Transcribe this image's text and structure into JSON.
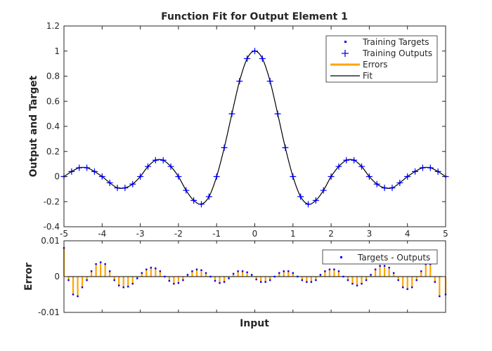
{
  "chart_data": [
    {
      "type": "line",
      "title": "Function Fit for Output Element 1",
      "xlabel": "",
      "ylabel": "Output and Target",
      "xlim": [
        -5,
        5
      ],
      "ylim": [
        -0.4,
        1.2
      ],
      "x_ticks": [
        -5,
        -4,
        -3,
        -2,
        -1,
        0,
        1,
        2,
        3,
        4,
        5
      ],
      "x_tick_labels": [
        "-5",
        "-4",
        "-3",
        "-2",
        "-1",
        "0",
        "1",
        "2",
        "3",
        "4",
        "5"
      ],
      "y_ticks": [
        -0.4,
        -0.2,
        0,
        0.2,
        0.4,
        0.6,
        0.8,
        1,
        1.2
      ],
      "y_tick_labels": [
        "-0.4",
        "-0.2",
        "0",
        "0.2",
        "0.4",
        "0.6",
        "0.8",
        "1",
        "1.2"
      ],
      "grid": false,
      "legend_position": "top-right",
      "legend": [
        "Training Targets",
        "Training Outputs",
        "Errors",
        "Fit"
      ],
      "x": [
        -5,
        -4.8,
        -4.6,
        -4.4,
        -4.2,
        -4,
        -3.8,
        -3.6,
        -3.4,
        -3.2,
        -3,
        -2.8,
        -2.6,
        -2.4,
        -2.2,
        -2,
        -1.8,
        -1.6,
        -1.4,
        -1.2,
        -1,
        -0.8,
        -0.6,
        -0.4,
        -0.2,
        0,
        0.2,
        0.4,
        0.6,
        0.8,
        1,
        1.2,
        1.4,
        1.6,
        1.8,
        2,
        2.2,
        2.4,
        2.6,
        2.8,
        3,
        3.2,
        3.4,
        3.6,
        3.8,
        4,
        4.2,
        4.4,
        4.6,
        4.8,
        5
      ],
      "targets": [
        0,
        0.04,
        0.07,
        0.07,
        0.04,
        0,
        -0.05,
        -0.09,
        -0.09,
        -0.06,
        0,
        0.08,
        0.13,
        0.13,
        0.08,
        0,
        -0.11,
        -0.19,
        -0.22,
        -0.16,
        0,
        0.23,
        0.5,
        0.76,
        0.94,
        1,
        0.94,
        0.76,
        0.5,
        0.23,
        0,
        -0.16,
        -0.22,
        -0.19,
        -0.11,
        0,
        0.08,
        0.13,
        0.13,
        0.08,
        0,
        -0.06,
        -0.09,
        -0.09,
        -0.05,
        0,
        0.04,
        0.07,
        0.07,
        0.04,
        0
      ],
      "outputs": [
        0,
        0.04,
        0.07,
        0.07,
        0.04,
        0,
        -0.05,
        -0.09,
        -0.09,
        -0.06,
        0,
        0.08,
        0.13,
        0.13,
        0.08,
        0,
        -0.11,
        -0.19,
        -0.22,
        -0.16,
        0,
        0.23,
        0.5,
        0.76,
        0.94,
        1,
        0.94,
        0.76,
        0.5,
        0.23,
        0,
        -0.16,
        -0.22,
        -0.19,
        -0.11,
        0,
        0.08,
        0.13,
        0.13,
        0.08,
        0,
        -0.06,
        -0.09,
        -0.09,
        -0.05,
        0,
        0.04,
        0.07,
        0.07,
        0.04,
        0
      ],
      "colors": {
        "targets": "#0000ff",
        "outputs": "#0000ff",
        "errors": "#ffa500",
        "fit": "#000000"
      }
    },
    {
      "type": "bar",
      "title": "",
      "xlabel": "Input",
      "ylabel": "Error",
      "xlim": [
        -5,
        5
      ],
      "ylim": [
        -0.01,
        0.01
      ],
      "y_ticks": [
        -0.01,
        0,
        0.01
      ],
      "y_tick_labels": [
        "-0.01",
        "0",
        "0.01"
      ],
      "legend_position": "top-right",
      "legend": [
        "Targets - Outputs"
      ],
      "x": [
        -5,
        -4.88,
        -4.76,
        -4.64,
        -4.52,
        -4.4,
        -4.28,
        -4.16,
        -4.04,
        -3.92,
        -3.8,
        -3.68,
        -3.56,
        -3.44,
        -3.32,
        -3.2,
        -3.08,
        -2.96,
        -2.84,
        -2.72,
        -2.6,
        -2.48,
        -2.36,
        -2.24,
        -2.12,
        -2,
        -1.88,
        -1.76,
        -1.64,
        -1.52,
        -1.4,
        -1.28,
        -1.16,
        -1.04,
        -0.92,
        -0.8,
        -0.68,
        -0.56,
        -0.44,
        -0.32,
        -0.2,
        -0.08,
        0.04,
        0.16,
        0.28,
        0.4,
        0.52,
        0.64,
        0.76,
        0.88,
        1,
        1.12,
        1.24,
        1.36,
        1.48,
        1.6,
        1.72,
        1.84,
        1.96,
        2.08,
        2.2,
        2.32,
        2.44,
        2.56,
        2.68,
        2.8,
        2.92,
        3.04,
        3.16,
        3.28,
        3.4,
        3.52,
        3.64,
        3.76,
        3.88,
        4,
        4.12,
        4.24,
        4.36,
        4.48,
        4.6,
        4.72,
        4.84,
        5
      ],
      "values": [
        0.008,
        -0.001,
        -0.005,
        -0.0055,
        -0.003,
        -0.001,
        0.0015,
        0.0035,
        0.004,
        0.0035,
        0.0015,
        -0.001,
        -0.0025,
        -0.003,
        -0.0028,
        -0.002,
        -0.0005,
        0.001,
        0.002,
        0.0025,
        0.0023,
        0.0015,
        0,
        -0.0012,
        -0.002,
        -0.0018,
        -0.001,
        0.0005,
        0.0015,
        0.002,
        0.0018,
        0.001,
        0,
        -0.0012,
        -0.0018,
        -0.0015,
        -0.0005,
        0.0008,
        0.0015,
        0.0015,
        0.0012,
        0.0005,
        -0.0008,
        -0.0015,
        -0.0015,
        -0.001,
        0,
        0.001,
        0.0015,
        0.0015,
        0.001,
        0,
        -0.001,
        -0.0015,
        -0.0015,
        -0.001,
        0.0005,
        0.0015,
        0.002,
        0.002,
        0.0015,
        0,
        -0.001,
        -0.002,
        -0.0025,
        -0.002,
        -0.001,
        0.0005,
        0.002,
        0.003,
        0.003,
        0.0025,
        0.001,
        -0.001,
        -0.003,
        -0.0035,
        -0.003,
        -0.001,
        0.0015,
        0.0035,
        0.0035,
        -0.0015,
        -0.0055,
        -0.005
      ],
      "colors": {
        "errors": "#ffa500",
        "points": "#0000ff",
        "zero_line": "#000000"
      }
    }
  ]
}
